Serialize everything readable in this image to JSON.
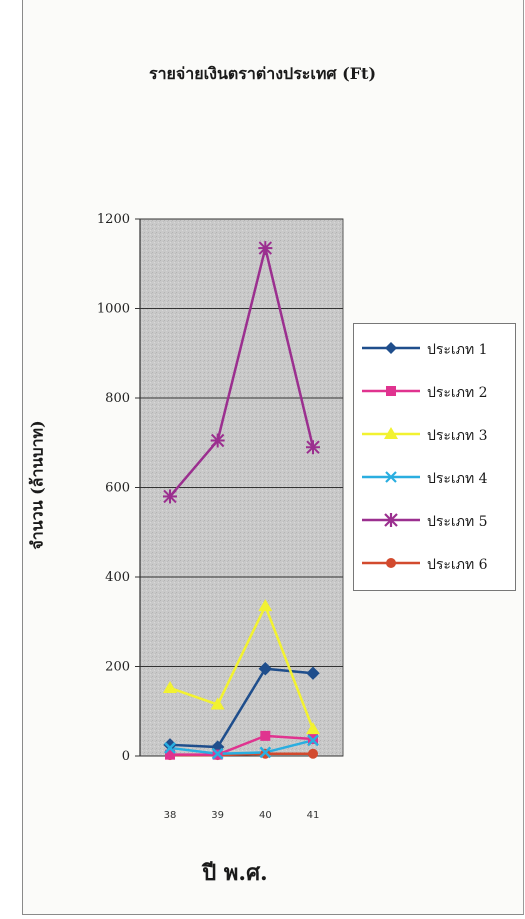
{
  "chart_data": {
    "type": "line",
    "title": "รายจ่ายเงินตราต่างประเทศ (Ft)",
    "xlabel": "ปี พ.ศ.",
    "ylabel": "จำนวน (ล้านบาท)",
    "categories": [
      "38",
      "39",
      "40",
      "41"
    ],
    "ylim": [
      0,
      1200
    ],
    "yticks": [
      0,
      200,
      400,
      600,
      800,
      1000,
      1200
    ],
    "grid": true,
    "legend_position": "right",
    "series": [
      {
        "name": "ประเภท 1",
        "color": "#1f4e8c",
        "marker": "diamond",
        "values": [
          25,
          20,
          195,
          185
        ]
      },
      {
        "name": "ประเภท 2",
        "color": "#e0338f",
        "marker": "square",
        "values": [
          3,
          3,
          45,
          38
        ]
      },
      {
        "name": "ประเภท 3",
        "color": "#f2f230",
        "marker": "triangle",
        "values": [
          152,
          115,
          335,
          60
        ]
      },
      {
        "name": "ประเภท 4",
        "color": "#2aaee0",
        "marker": "x",
        "values": [
          18,
          5,
          8,
          35
        ]
      },
      {
        "name": "ประเภท 5",
        "color": "#9b2f8f",
        "marker": "star",
        "values": [
          580,
          705,
          1135,
          690
        ]
      },
      {
        "name": "ประเภท 6",
        "color": "#d24a2e",
        "marker": "circle",
        "values": [
          2,
          2,
          5,
          5
        ]
      }
    ]
  }
}
